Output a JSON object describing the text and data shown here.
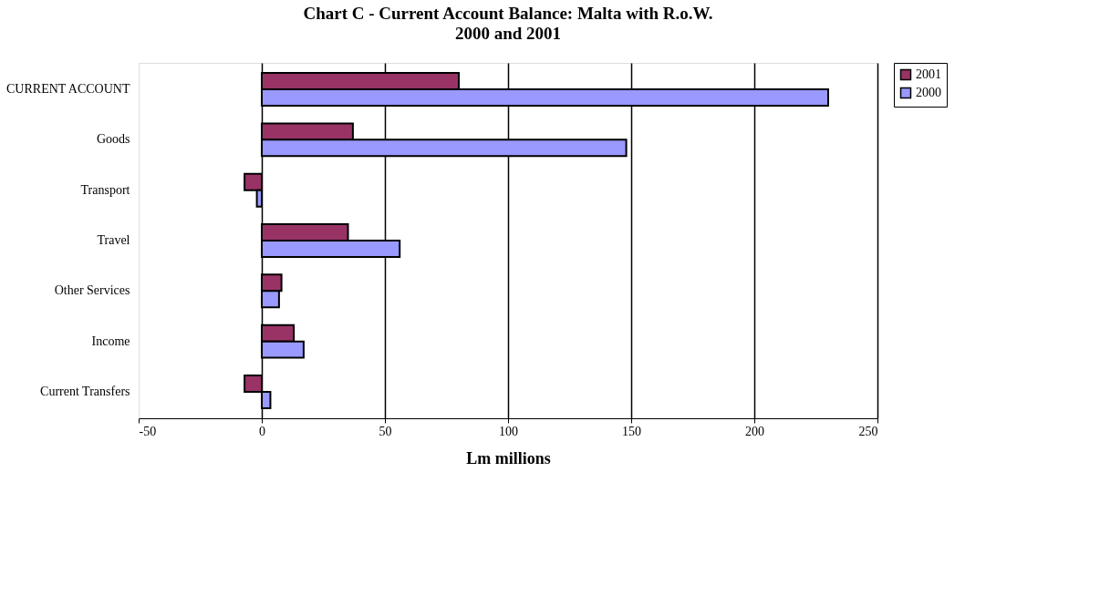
{
  "chart_data": {
    "type": "bar",
    "orientation": "horizontal",
    "title": "Chart C - Current Account Balance: Malta with R.o.W.",
    "subtitle": "2000 and 2001",
    "xlabel": "Lm millions",
    "categories": [
      "CURRENT ACCOUNT",
      "Goods",
      "Transport",
      "Travel",
      "Other Services",
      "Income",
      "Current Transfers"
    ],
    "series": [
      {
        "name": "2001",
        "color": "#993366",
        "values": [
          80,
          37,
          -7,
          35,
          8,
          13,
          -7
        ]
      },
      {
        "name": "2000",
        "color": "#9999ff",
        "values": [
          230,
          148,
          -2,
          56,
          7,
          17,
          3.5
        ]
      }
    ],
    "xlim": [
      -50,
      250
    ],
    "xticks": [
      -50,
      0,
      50,
      100,
      150,
      200,
      250
    ],
    "grid": "x",
    "legend": "right"
  }
}
